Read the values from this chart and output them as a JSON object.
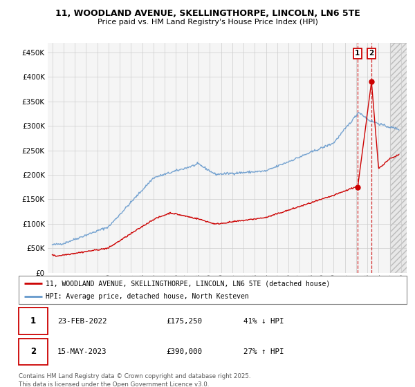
{
  "title_line1": "11, WOODLAND AVENUE, SKELLINGTHORPE, LINCOLN, LN6 5TE",
  "title_line2": "Price paid vs. HM Land Registry's House Price Index (HPI)",
  "ylim": [
    0,
    470000
  ],
  "yticks": [
    0,
    50000,
    100000,
    150000,
    200000,
    250000,
    300000,
    350000,
    400000,
    450000
  ],
  "ytick_labels": [
    "£0",
    "£50K",
    "£100K",
    "£150K",
    "£200K",
    "£250K",
    "£300K",
    "£350K",
    "£400K",
    "£450K"
  ],
  "sale1_date": "23-FEB-2022",
  "sale1_price": "£175,250",
  "sale1_hpi": "41% ↓ HPI",
  "sale1_x": 2022.12,
  "sale1_y": 175250,
  "sale2_date": "15-MAY-2023",
  "sale2_price": "£390,000",
  "sale2_hpi": "27% ↑ HPI",
  "sale2_x": 2023.37,
  "sale2_y": 390000,
  "legend_line1": "11, WOODLAND AVENUE, SKELLINGTHORPE, LINCOLN, LN6 5TE (detached house)",
  "legend_line2": "HPI: Average price, detached house, North Kesteven",
  "footer": "Contains HM Land Registry data © Crown copyright and database right 2025.\nThis data is licensed under the Open Government Licence v3.0.",
  "line_color_red": "#cc0000",
  "line_color_blue": "#6699cc",
  "background_color": "#ffffff",
  "grid_color": "#cccccc",
  "future_start": 2025.0,
  "xlim_left": 1994.6,
  "xlim_right": 2026.5
}
